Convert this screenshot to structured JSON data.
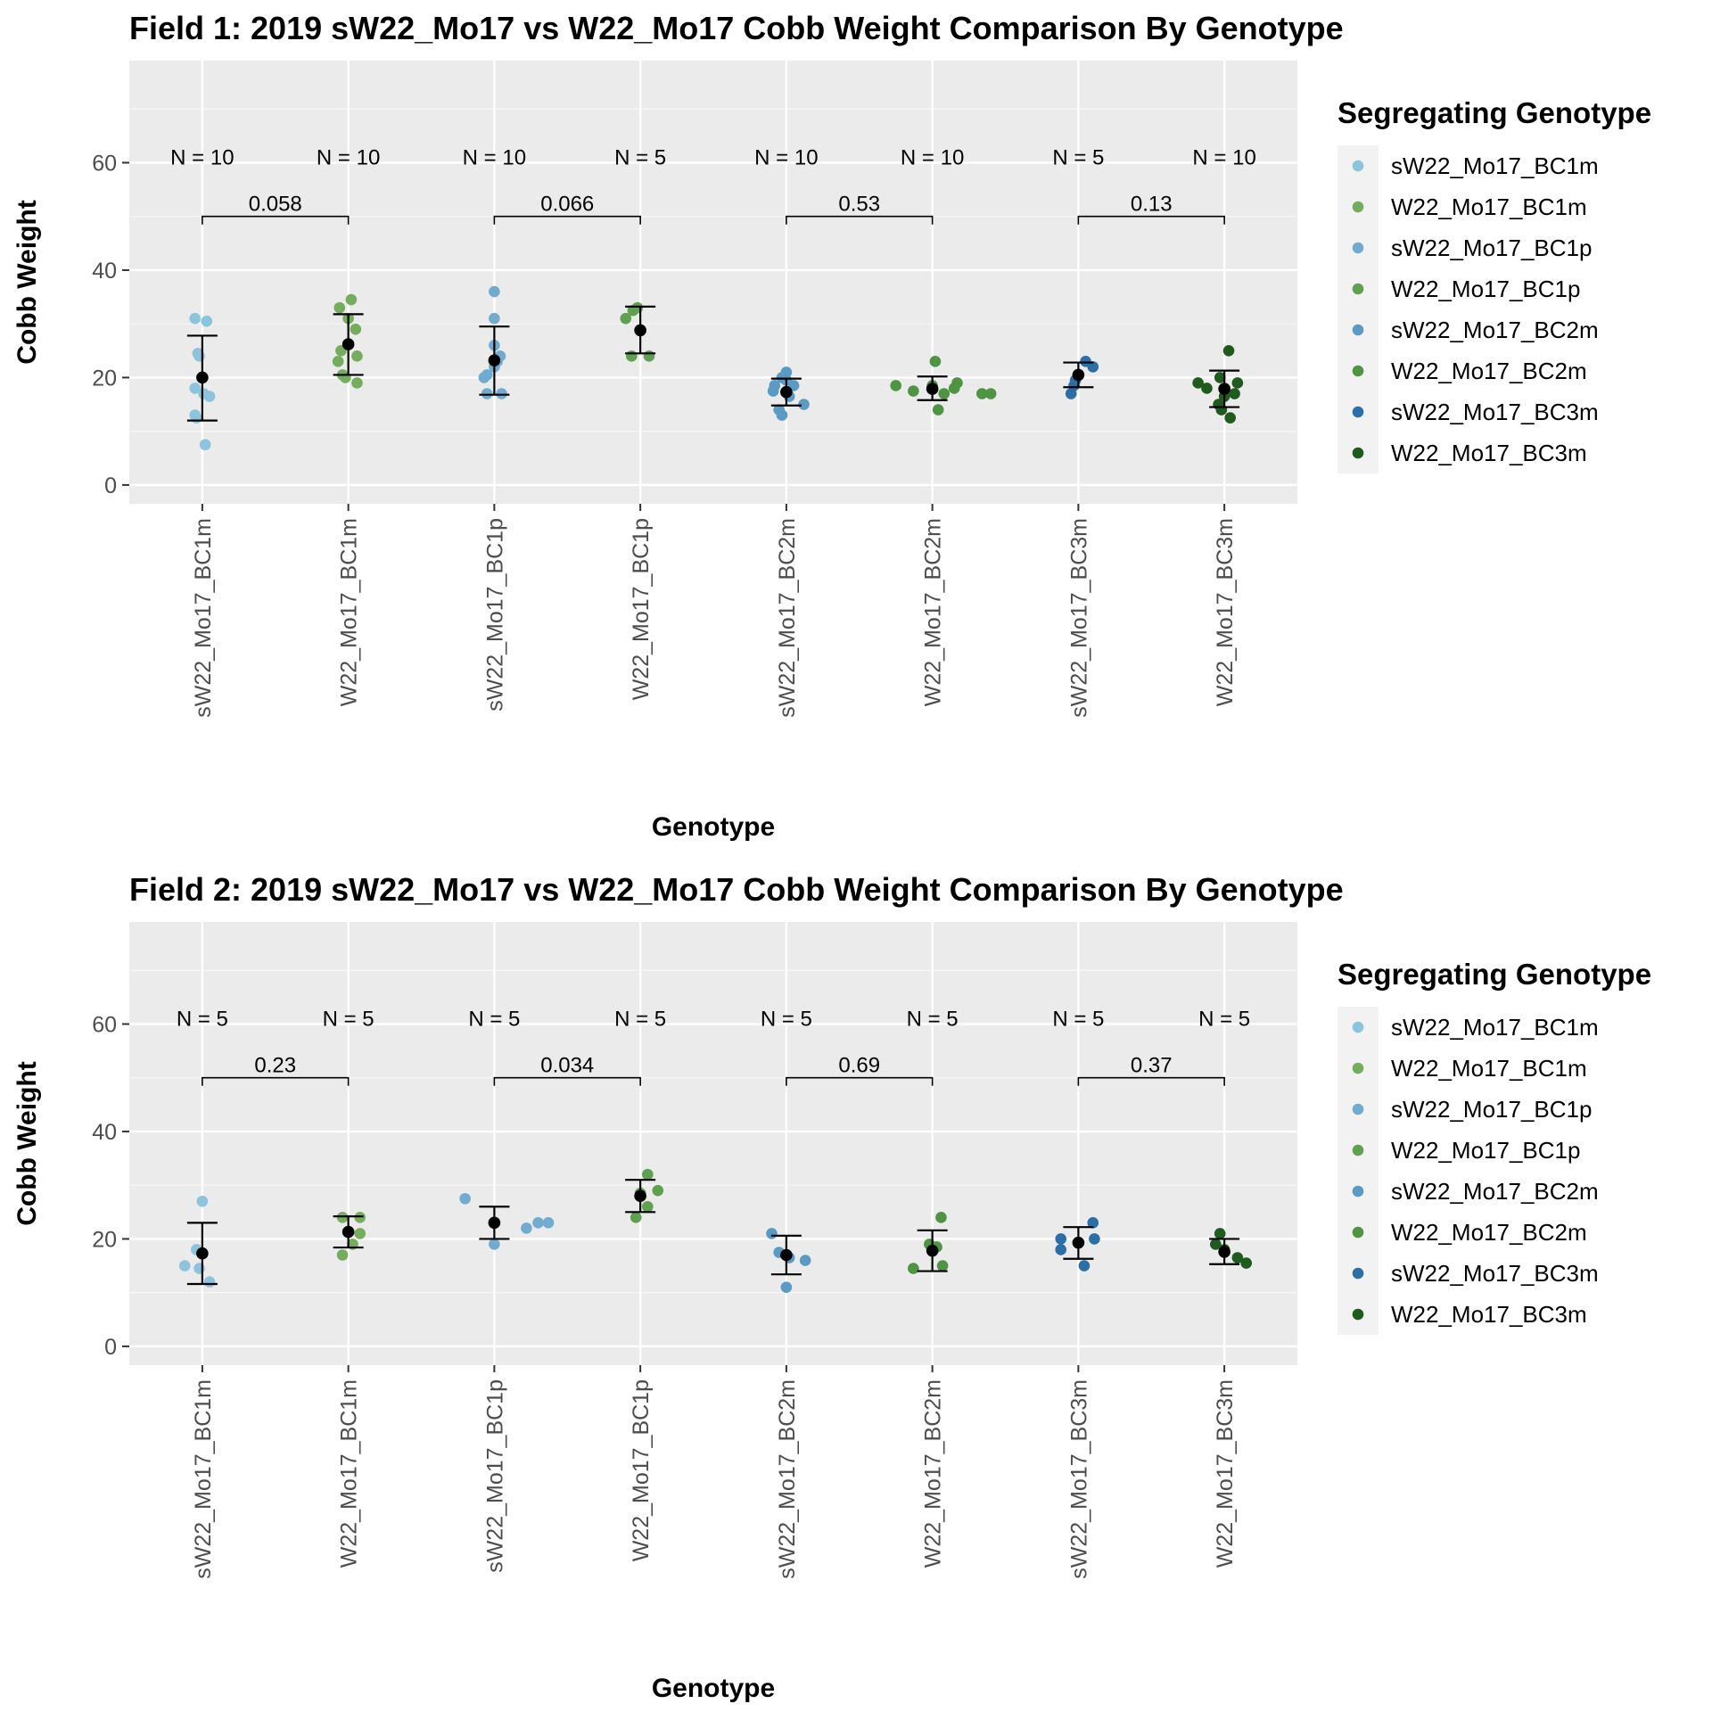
{
  "chart_data": [
    {
      "type": "scatter",
      "title": "Field 1: 2019 sW22_Mo17 vs W22_Mo17 Cobb Weight Comparison By Genotype",
      "xlabel": "Genotype",
      "ylabel": "Cobb Weight",
      "ylim": [
        -3.5,
        79
      ],
      "yticks": [
        0,
        20,
        40,
        60
      ],
      "categories": [
        "sW22_Mo17_BC1m",
        "W22_Mo17_BC1m",
        "sW22_Mo17_BC1p",
        "W22_Mo17_BC1p",
        "sW22_Mo17_BC2m",
        "W22_Mo17_BC2m",
        "sW22_Mo17_BC3m",
        "W22_Mo17_BC3m"
      ],
      "legend": {
        "title": "Segregating Genotype",
        "position": "right"
      },
      "groups": [
        {
          "genotype": "sW22_Mo17_BC1m",
          "color": "#8cc4dd",
          "n_label": "N = 10",
          "mean": 20.0,
          "lower": 12.0,
          "upper": 27.8,
          "points": [
            [
              -0.05,
              31.0
            ],
            [
              0.03,
              30.5
            ],
            [
              -0.03,
              24.5
            ],
            [
              -0.02,
              24.0
            ],
            [
              -0.05,
              18.0
            ],
            [
              0.05,
              16.5
            ],
            [
              -0.05,
              13.0
            ],
            [
              -0.04,
              12.5
            ],
            [
              0.02,
              7.5
            ],
            [
              0.01,
              17.0
            ]
          ]
        },
        {
          "genotype": "W22_Mo17_BC1m",
          "color": "#74ad5d",
          "n_label": "N = 10",
          "mean": 26.2,
          "lower": 20.5,
          "upper": 31.8,
          "points": [
            [
              -0.06,
              33.0
            ],
            [
              0.02,
              34.5
            ],
            [
              -0.05,
              25.0
            ],
            [
              0.05,
              29.0
            ],
            [
              -0.07,
              23.0
            ],
            [
              0.06,
              24.0
            ],
            [
              -0.04,
              20.5
            ],
            [
              -0.02,
              20.0
            ],
            [
              0.06,
              19.0
            ],
            [
              0.0,
              31.0
            ]
          ]
        },
        {
          "genotype": "sW22_Mo17_BC1p",
          "color": "#71acd0",
          "n_label": "N = 10",
          "mean": 23.2,
          "lower": 16.8,
          "upper": 29.5,
          "points": [
            [
              0.0,
              36.0
            ],
            [
              0.0,
              31.0
            ],
            [
              0.0,
              26.0
            ],
            [
              0.04,
              24.0
            ],
            [
              0.02,
              23.0
            ],
            [
              -0.05,
              20.5
            ],
            [
              -0.07,
              20.0
            ],
            [
              0.05,
              17.0
            ],
            [
              -0.05,
              17.0
            ],
            [
              0.0,
              22.0
            ]
          ]
        },
        {
          "genotype": "W22_Mo17_BC1p",
          "color": "#5fa150",
          "n_label": "N = 5",
          "mean": 28.8,
          "lower": 24.5,
          "upper": 33.2,
          "points": [
            [
              -0.1,
              31.0
            ],
            [
              -0.05,
              32.5
            ],
            [
              -0.02,
              33.0
            ],
            [
              -0.06,
              24.0
            ],
            [
              0.06,
              24.0
            ]
          ]
        },
        {
          "genotype": "sW22_Mo17_BC2m",
          "color": "#5a9ac5",
          "n_label": "N = 10",
          "mean": 17.3,
          "lower": 14.8,
          "upper": 19.8,
          "points": [
            [
              0.0,
              21.0
            ],
            [
              -0.03,
              20.0
            ],
            [
              0.05,
              18.5
            ],
            [
              -0.08,
              18.5
            ],
            [
              -0.09,
              17.5
            ],
            [
              0.02,
              16.5
            ],
            [
              0.12,
              15.0
            ],
            [
              -0.05,
              14.0
            ],
            [
              -0.03,
              13.0
            ],
            [
              0.0,
              19.5
            ]
          ]
        },
        {
          "genotype": "W22_Mo17_BC2m",
          "color": "#4e9443",
          "n_label": "N = 10",
          "mean": 17.9,
          "lower": 15.8,
          "upper": 20.2,
          "points": [
            [
              0.02,
              23.0
            ],
            [
              -0.25,
              18.5
            ],
            [
              -0.13,
              17.5
            ],
            [
              0.08,
              17.0
            ],
            [
              0.15,
              18.0
            ],
            [
              0.17,
              19.0
            ],
            [
              0.34,
              17.0
            ],
            [
              0.4,
              17.0
            ],
            [
              0.04,
              14.0
            ],
            [
              0.0,
              18.5
            ]
          ]
        },
        {
          "genotype": "sW22_Mo17_BC3m",
          "color": "#2c6ea6",
          "n_label": "N = 5",
          "mean": 20.5,
          "lower": 18.2,
          "upper": 22.8,
          "points": [
            [
              0.05,
              23.0
            ],
            [
              0.1,
              22.0
            ],
            [
              -0.02,
              19.5
            ],
            [
              -0.05,
              17.0
            ],
            [
              -0.03,
              18.5
            ]
          ]
        },
        {
          "genotype": "W22_Mo17_BC3m",
          "color": "#1f5a1f",
          "n_label": "N = 10",
          "mean": 17.9,
          "lower": 14.5,
          "upper": 21.3,
          "points": [
            [
              0.03,
              25.0
            ],
            [
              -0.18,
              19.0
            ],
            [
              -0.12,
              18.0
            ],
            [
              -0.03,
              20.0
            ],
            [
              0.09,
              19.0
            ],
            [
              0.07,
              17.0
            ],
            [
              -0.04,
              15.0
            ],
            [
              -0.02,
              14.0
            ],
            [
              0.04,
              12.5
            ],
            [
              0.0,
              16.5
            ]
          ]
        }
      ],
      "comparisons": [
        {
          "pair": [
            0,
            1
          ],
          "p_value": "0.058",
          "y": 50
        },
        {
          "pair": [
            2,
            3
          ],
          "p_value": "0.066",
          "y": 50
        },
        {
          "pair": [
            4,
            5
          ],
          "p_value": "0.53",
          "y": 50
        },
        {
          "pair": [
            6,
            7
          ],
          "p_value": "0.13",
          "y": 50
        }
      ]
    },
    {
      "type": "scatter",
      "title": "Field 2: 2019 sW22_Mo17 vs W22_Mo17 Cobb Weight Comparison By Genotype",
      "xlabel": "Genotype",
      "ylabel": "Cobb Weight",
      "ylim": [
        -3.5,
        79
      ],
      "yticks": [
        0,
        20,
        40,
        60
      ],
      "categories": [
        "sW22_Mo17_BC1m",
        "W22_Mo17_BC1m",
        "sW22_Mo17_BC1p",
        "W22_Mo17_BC1p",
        "sW22_Mo17_BC2m",
        "W22_Mo17_BC2m",
        "sW22_Mo17_BC3m",
        "W22_Mo17_BC3m"
      ],
      "legend": {
        "title": "Segregating Genotype",
        "position": "right"
      },
      "groups": [
        {
          "genotype": "sW22_Mo17_BC1m",
          "color": "#8cc4dd",
          "n_label": "N = 5",
          "mean": 17.3,
          "lower": 11.6,
          "upper": 23.0,
          "points": [
            [
              0.0,
              27.0
            ],
            [
              -0.12,
              15.0
            ],
            [
              -0.04,
              18.0
            ],
            [
              -0.02,
              14.5
            ],
            [
              0.05,
              12.0
            ]
          ]
        },
        {
          "genotype": "W22_Mo17_BC1m",
          "color": "#74ad5d",
          "n_label": "N = 5",
          "mean": 21.3,
          "lower": 18.4,
          "upper": 24.2,
          "points": [
            [
              -0.04,
              24.0
            ],
            [
              0.08,
              24.0
            ],
            [
              0.08,
              21.0
            ],
            [
              0.03,
              19.0
            ],
            [
              -0.04,
              17.0
            ]
          ]
        },
        {
          "genotype": "sW22_Mo17_BC1p",
          "color": "#71acd0",
          "n_label": "N = 5",
          "mean": 23.0,
          "lower": 20.0,
          "upper": 26.0,
          "points": [
            [
              -0.2,
              27.5
            ],
            [
              0.3,
              23.0
            ],
            [
              0.37,
              23.0
            ],
            [
              0.22,
              22.0
            ],
            [
              0.0,
              19.0
            ]
          ]
        },
        {
          "genotype": "W22_Mo17_BC1p",
          "color": "#5fa150",
          "n_label": "N = 5",
          "mean": 28.0,
          "lower": 25.0,
          "upper": 31.0,
          "points": [
            [
              0.05,
              32.0
            ],
            [
              0.12,
              29.0
            ],
            [
              0.05,
              26.0
            ],
            [
              -0.03,
              24.0
            ],
            [
              0.0,
              28.5
            ]
          ]
        },
        {
          "genotype": "sW22_Mo17_BC2m",
          "color": "#5a9ac5",
          "n_label": "N = 5",
          "mean": 17.0,
          "lower": 13.4,
          "upper": 20.6,
          "points": [
            [
              -0.1,
              21.0
            ],
            [
              -0.05,
              17.5
            ],
            [
              0.13,
              16.0
            ],
            [
              0.02,
              16.5
            ],
            [
              0.0,
              11.0
            ]
          ]
        },
        {
          "genotype": "W22_Mo17_BC2m",
          "color": "#4e9443",
          "n_label": "N = 5",
          "mean": 17.8,
          "lower": 14.0,
          "upper": 21.6,
          "points": [
            [
              0.06,
              24.0
            ],
            [
              -0.13,
              14.5
            ],
            [
              0.07,
              15.0
            ],
            [
              0.03,
              18.5
            ],
            [
              -0.02,
              19.0
            ]
          ]
        },
        {
          "genotype": "sW22_Mo17_BC3m",
          "color": "#2c6ea6",
          "n_label": "N = 5",
          "mean": 19.3,
          "lower": 16.3,
          "upper": 22.2,
          "points": [
            [
              0.1,
              23.0
            ],
            [
              -0.12,
              20.0
            ],
            [
              0.11,
              20.0
            ],
            [
              -0.12,
              18.0
            ],
            [
              0.04,
              15.0
            ]
          ]
        },
        {
          "genotype": "W22_Mo17_BC3m",
          "color": "#1f5a1f",
          "n_label": "N = 5",
          "mean": 17.6,
          "lower": 15.3,
          "upper": 20.0,
          "points": [
            [
              -0.03,
              21.0
            ],
            [
              -0.06,
              19.0
            ],
            [
              0.09,
              16.5
            ],
            [
              0.15,
              15.5
            ],
            [
              0.0,
              18.0
            ]
          ]
        }
      ],
      "comparisons": [
        {
          "pair": [
            0,
            1
          ],
          "p_value": "0.23",
          "y": 50
        },
        {
          "pair": [
            2,
            3
          ],
          "p_value": "0.034",
          "y": 50
        },
        {
          "pair": [
            4,
            5
          ],
          "p_value": "0.69",
          "y": 50
        },
        {
          "pair": [
            6,
            7
          ],
          "p_value": "0.37",
          "y": 50
        }
      ]
    }
  ]
}
